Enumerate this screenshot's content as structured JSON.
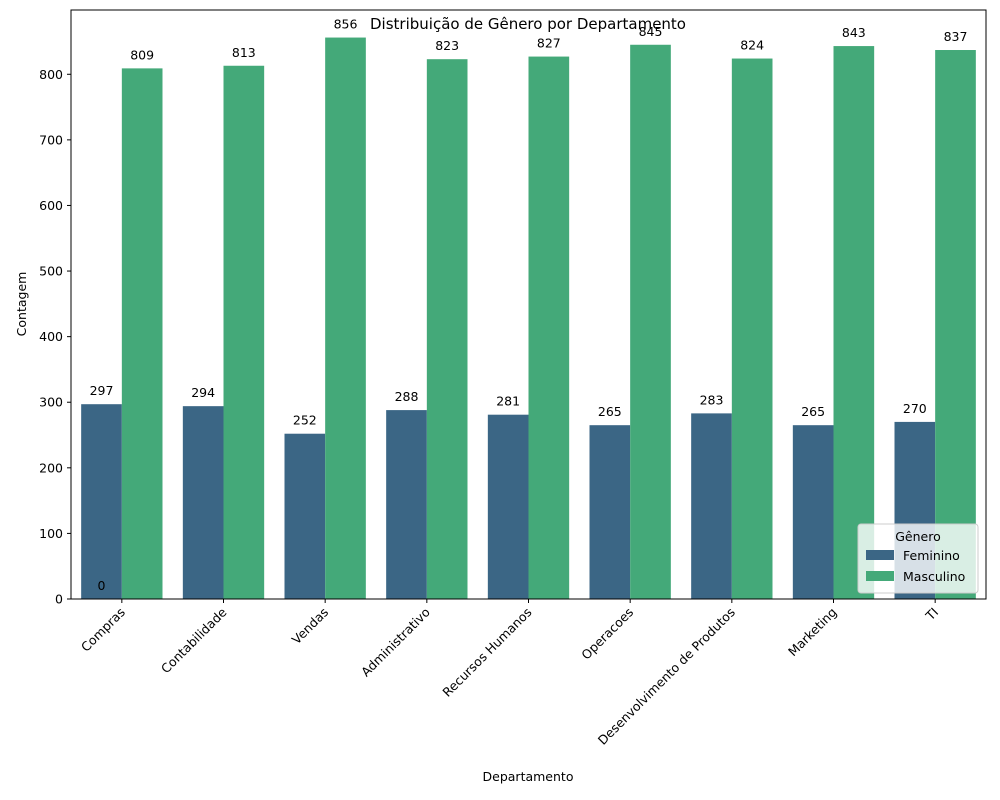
{
  "chart_data": {
    "type": "bar",
    "title": "Distribuição de Gênero por Departamento",
    "xlabel": "Departamento",
    "ylabel": "Contagem",
    "ylim": [
      0,
      898
    ],
    "yticks": [
      0,
      100,
      200,
      300,
      400,
      500,
      600,
      700,
      800
    ],
    "categories": [
      "Compras",
      "Contabilidade",
      "Vendas",
      "Administrativo",
      "Recursos Humanos",
      "Operacoes",
      "Desenvolvimento de Produtos",
      "Marketing",
      "TI"
    ],
    "series": [
      {
        "name": "Feminino",
        "color": "#3b6685",
        "values": [
          297,
          294,
          252,
          288,
          281,
          265,
          283,
          265,
          270
        ]
      },
      {
        "name": "Masculino",
        "color": "#44a979",
        "values": [
          809,
          813,
          856,
          823,
          827,
          845,
          824,
          843,
          837
        ]
      }
    ],
    "extra_labels": [
      {
        "text": "0",
        "category": "Compras",
        "value": 0
      }
    ],
    "legend": {
      "title": "Gênero",
      "position": "lower-right"
    },
    "grid": false
  }
}
